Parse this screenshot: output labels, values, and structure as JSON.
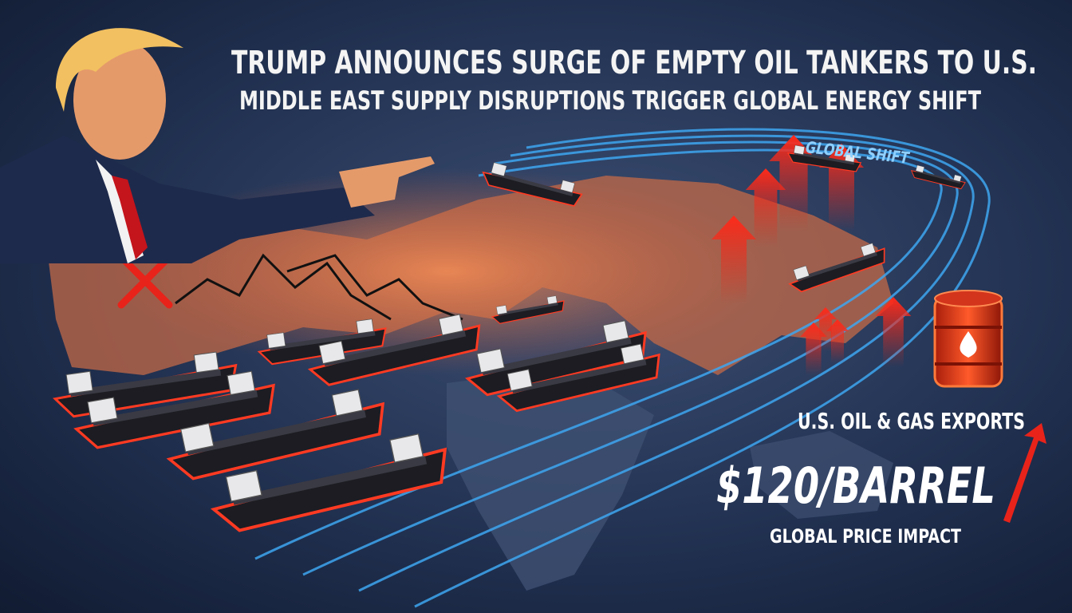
{
  "headline": {
    "title": "TRUMP ANNOUNCES SURGE OF EMPTY OIL TANKERS TO U.S.",
    "subtitle": "MIDDLE EAST SUPPLY DISRUPTIONS TRIGGER GLOBAL ENERGY SHIFT"
  },
  "route_label": "GLOBAL SHIFT",
  "exports": {
    "label": "U.S. OIL & GAS EXPORTS",
    "price": "$120/BARREL",
    "caption": "GLOBAL PRICE IMPACT"
  }
}
